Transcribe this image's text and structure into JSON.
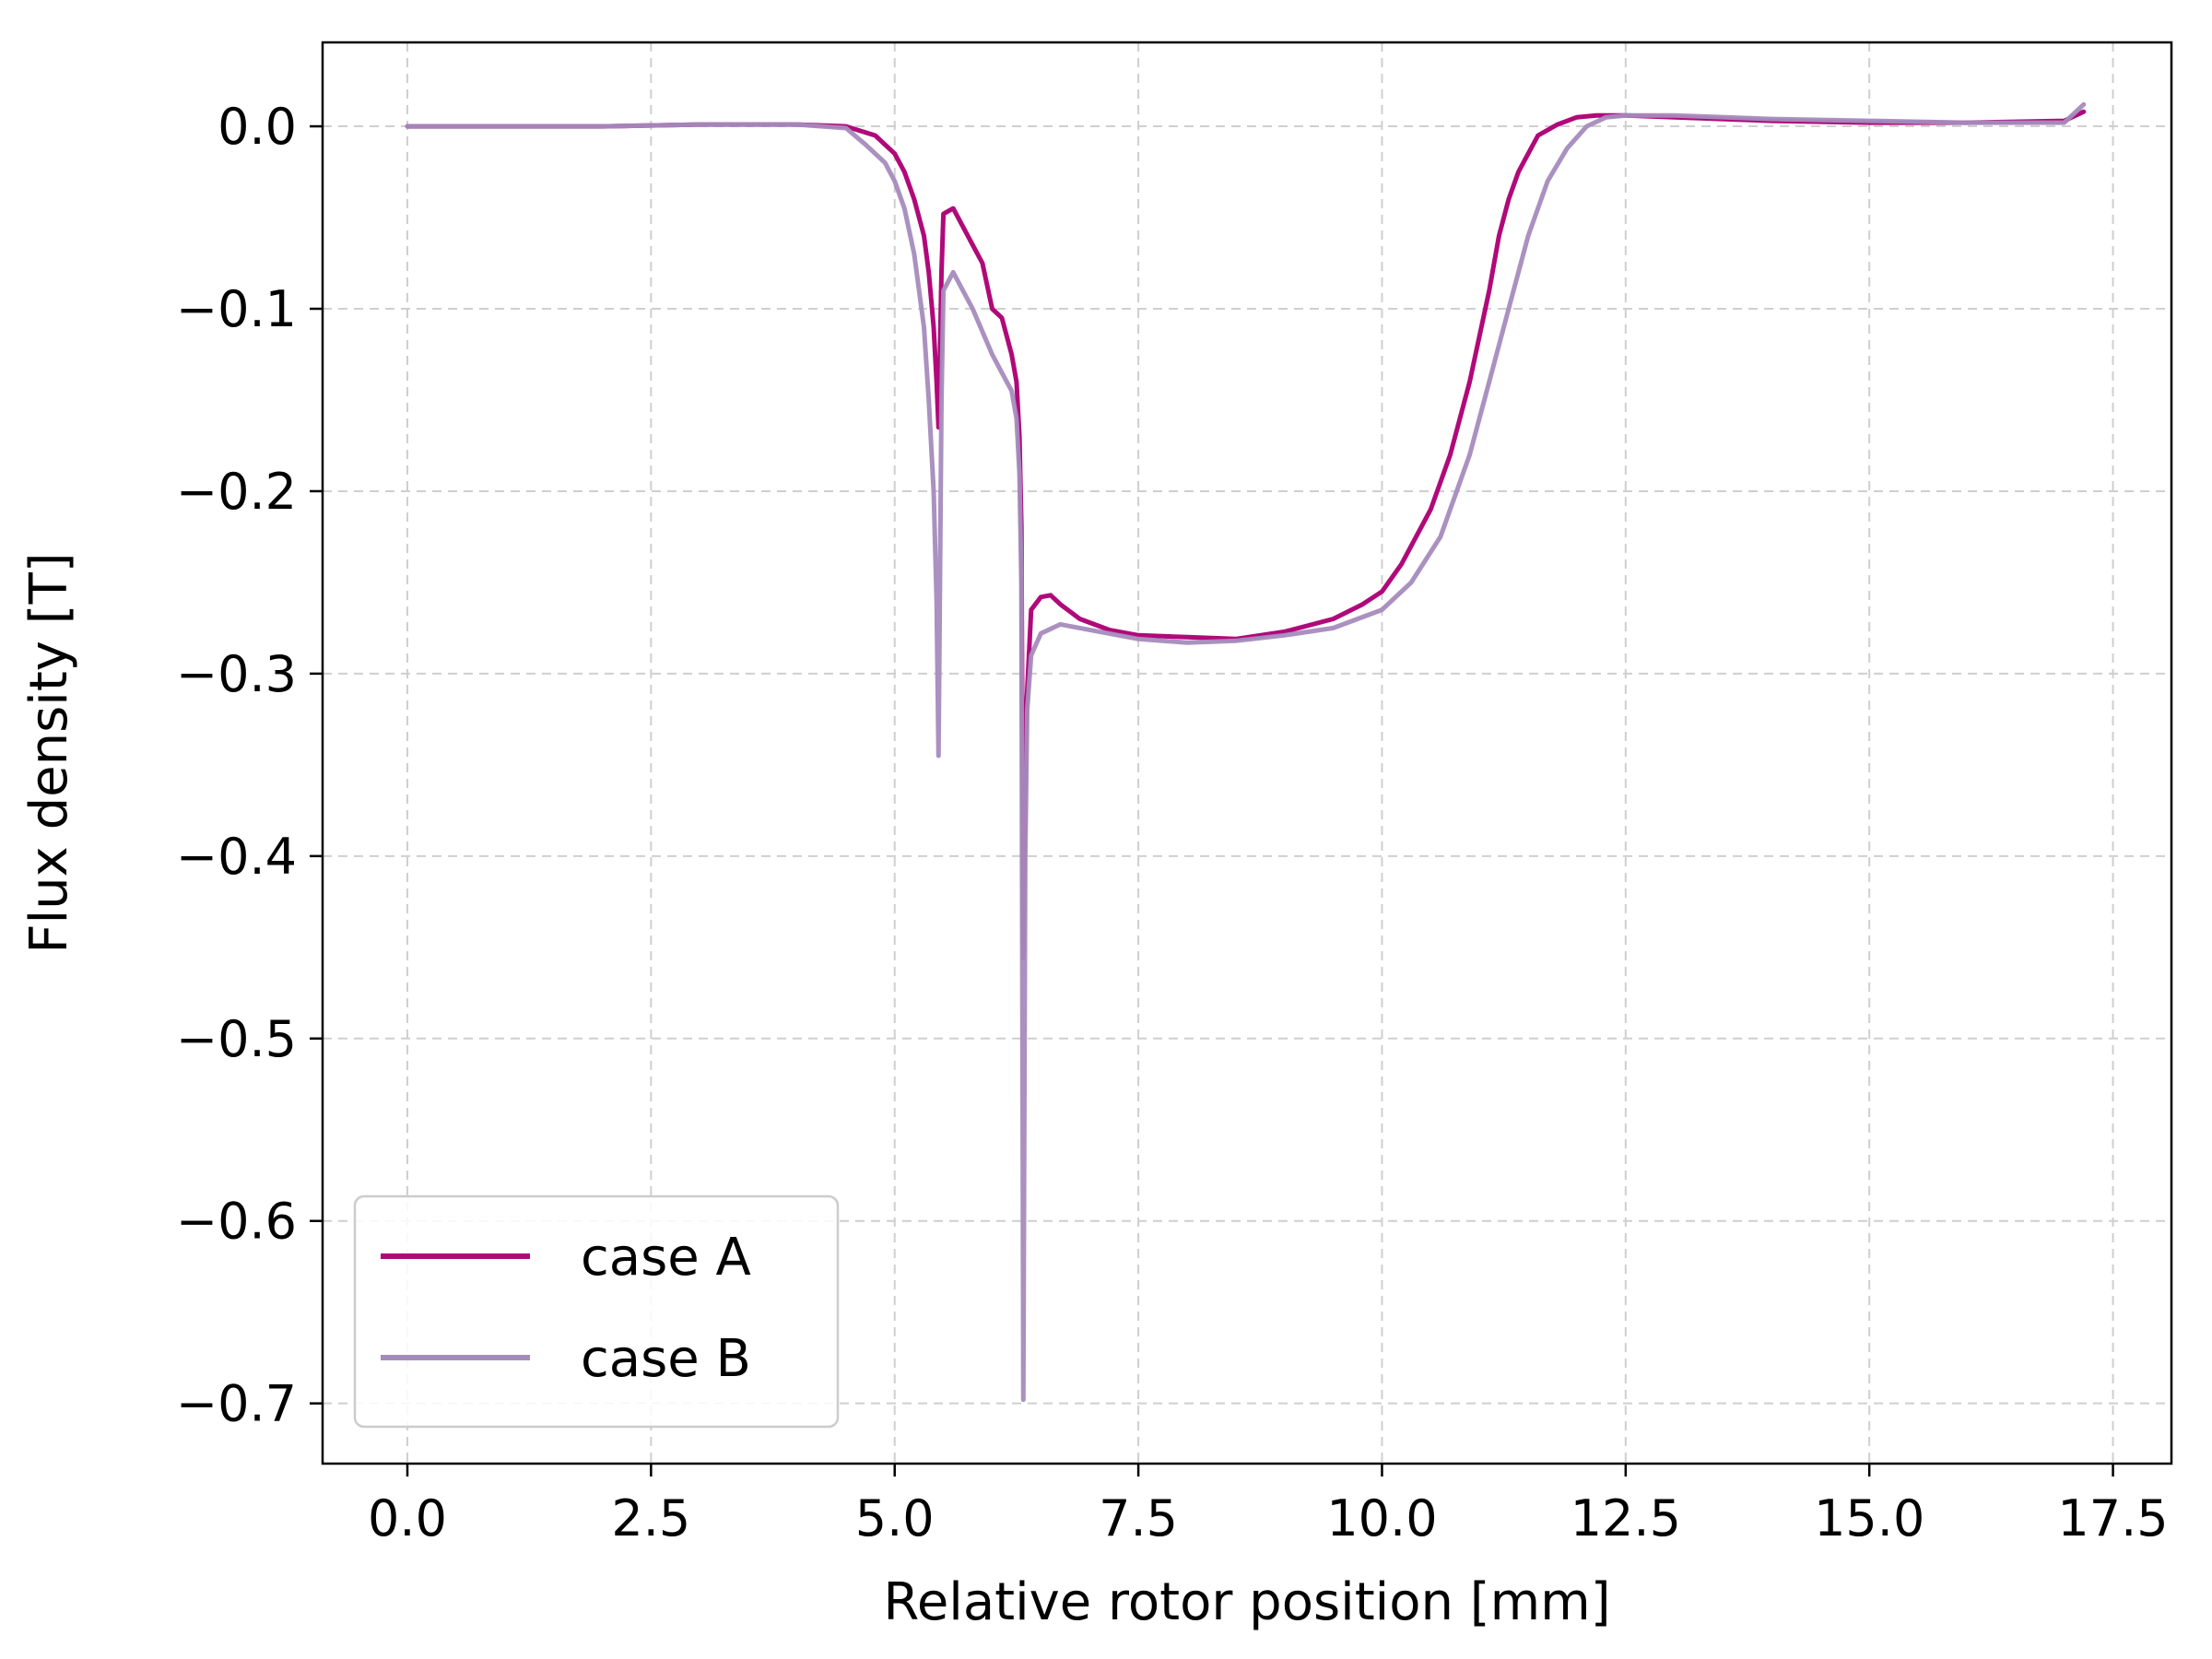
{
  "chart_data": {
    "type": "line",
    "title": "",
    "xlabel": "Relative rotor position [mm]",
    "ylabel": "Flux density [T]",
    "xlim": [
      -0.87,
      18.1
    ],
    "ylim": [
      -0.733,
      0.046
    ],
    "x_ticks": [
      0.0,
      2.5,
      5.0,
      7.5,
      10.0,
      12.5,
      15.0,
      17.5
    ],
    "x_tick_labels": [
      "0.0",
      "2.5",
      "5.0",
      "7.5",
      "10.0",
      "12.5",
      "15.0",
      "17.5"
    ],
    "y_ticks": [
      0.0,
      -0.1,
      -0.2,
      -0.3,
      -0.4,
      -0.5,
      -0.6,
      -0.7
    ],
    "y_tick_labels": [
      "0.0",
      "−0.1",
      "−0.2",
      "−0.3",
      "−0.4",
      "−0.5",
      "−0.6",
      "−0.7"
    ],
    "grid": true,
    "legend_position": "lower-left",
    "series": [
      {
        "name": "case A",
        "color": "#b0097a",
        "x": [
          0,
          1,
          2,
          3,
          4,
          4.5,
          4.8,
          5.0,
          5.1,
          5.2,
          5.3,
          5.35,
          5.4,
          5.43,
          5.45,
          5.48,
          5.5,
          5.6,
          5.8,
          5.9,
          6.0,
          6.1,
          6.2,
          6.25,
          6.28,
          6.3,
          6.32,
          6.35,
          6.4,
          6.5,
          6.6,
          6.7,
          6.9,
          7.0,
          7.2,
          7.5,
          8.0,
          8.5,
          9.0,
          9.5,
          9.8,
          10.0,
          10.2,
          10.5,
          10.7,
          10.9,
          11.0,
          11.1,
          11.2,
          11.3,
          11.4,
          11.5,
          11.6,
          11.8,
          12.0,
          12.2,
          12.5,
          13.0,
          14.0,
          15.0,
          16.0,
          17.0,
          17.2
        ],
        "y": [
          0,
          0,
          0,
          0.001,
          0.001,
          0.0,
          -0.005,
          -0.015,
          -0.025,
          -0.04,
          -0.06,
          -0.08,
          -0.11,
          -0.14,
          -0.165,
          -0.08,
          -0.048,
          -0.045,
          -0.065,
          -0.075,
          -0.1,
          -0.105,
          -0.125,
          -0.14,
          -0.17,
          -0.22,
          -0.456,
          -0.32,
          -0.265,
          -0.258,
          -0.257,
          -0.262,
          -0.27,
          -0.272,
          -0.276,
          -0.279,
          -0.28,
          -0.281,
          -0.277,
          -0.27,
          -0.262,
          -0.255,
          -0.24,
          -0.21,
          -0.18,
          -0.14,
          -0.115,
          -0.09,
          -0.06,
          -0.04,
          -0.025,
          -0.015,
          -0.005,
          0.001,
          0.005,
          0.006,
          0.006,
          0.005,
          0.003,
          0.002,
          0.002,
          0.003,
          0.008
        ]
      },
      {
        "name": "case B",
        "color": "#a58bbd",
        "x": [
          0,
          1,
          2,
          3,
          4,
          4.5,
          4.7,
          4.9,
          5.0,
          5.1,
          5.2,
          5.3,
          5.35,
          5.4,
          5.43,
          5.45,
          5.48,
          5.5,
          5.6,
          5.8,
          6.0,
          6.1,
          6.2,
          6.25,
          6.28,
          6.3,
          6.32,
          6.34,
          6.36,
          6.4,
          6.5,
          6.7,
          7.0,
          7.5,
          8.0,
          8.5,
          9.0,
          9.5,
          10.0,
          10.3,
          10.6,
          10.9,
          11.1,
          11.3,
          11.5,
          11.7,
          11.9,
          12.1,
          12.3,
          12.5,
          13.0,
          14.0,
          15.0,
          16.0,
          17.0,
          17.2
        ],
        "y": [
          0,
          0,
          0,
          0.001,
          0.001,
          -0.001,
          -0.01,
          -0.02,
          -0.03,
          -0.045,
          -0.07,
          -0.11,
          -0.15,
          -0.2,
          -0.26,
          -0.345,
          -0.15,
          -0.09,
          -0.08,
          -0.1,
          -0.125,
          -0.135,
          -0.145,
          -0.16,
          -0.19,
          -0.25,
          -0.698,
          -0.4,
          -0.32,
          -0.29,
          -0.278,
          -0.273,
          -0.276,
          -0.281,
          -0.283,
          -0.282,
          -0.279,
          -0.275,
          -0.265,
          -0.25,
          -0.225,
          -0.18,
          -0.14,
          -0.1,
          -0.06,
          -0.03,
          -0.012,
          0.0,
          0.005,
          0.006,
          0.006,
          0.004,
          0.003,
          0.002,
          0.002,
          0.012
        ]
      }
    ]
  }
}
